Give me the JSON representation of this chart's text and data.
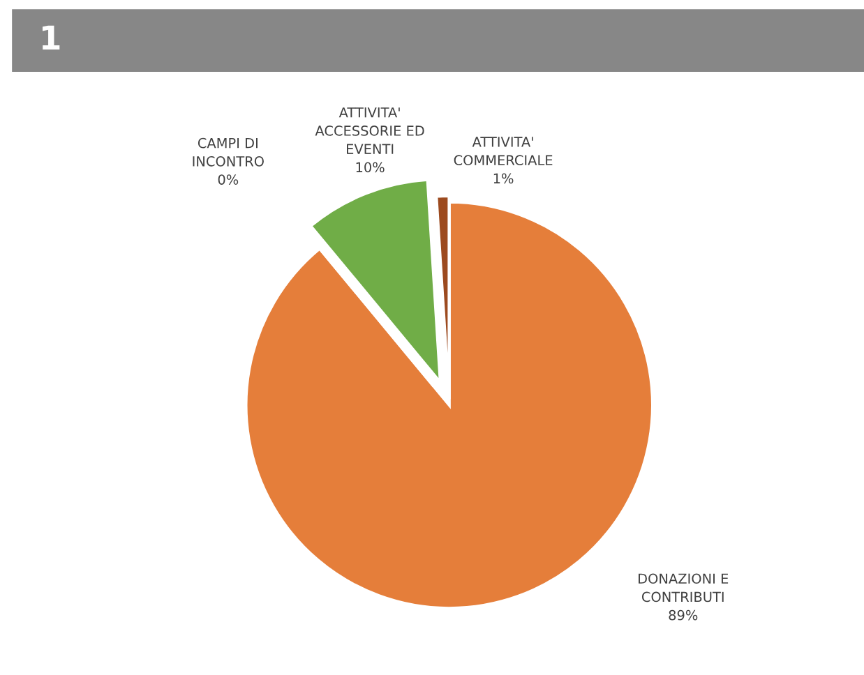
{
  "chart_data": {
    "type": "pie",
    "title": "1",
    "categories": [
      "DONAZIONI E\nCONTRIBUTI",
      "CAMPI DI\nINCONTRO",
      "ATTIVITA'\nACCESSORIE ED\nEVENTI",
      "ATTIVITA'\nCOMMERCIALE"
    ],
    "values": [
      89,
      0,
      10,
      1
    ],
    "value_labels": [
      "89%",
      "0%",
      "10%",
      "1%"
    ],
    "colors": [
      "#e57e3a",
      "#4472c4",
      "#70ad47",
      "#9c4a1f"
    ],
    "legend": false
  }
}
